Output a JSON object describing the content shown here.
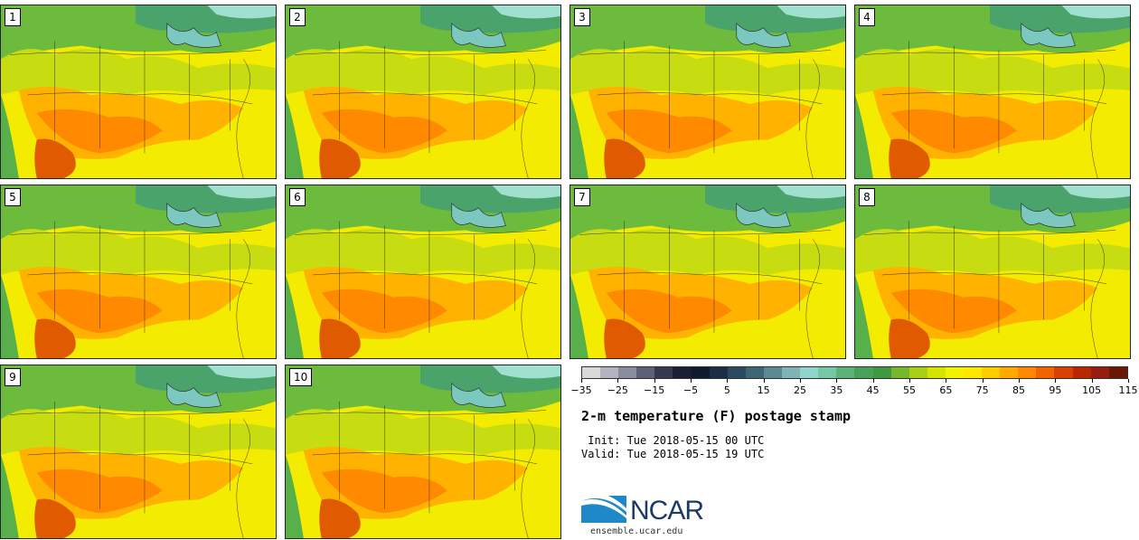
{
  "panels": [
    {
      "label": "1"
    },
    {
      "label": "2"
    },
    {
      "label": "3"
    },
    {
      "label": "4"
    },
    {
      "label": "5"
    },
    {
      "label": "6"
    },
    {
      "label": "7"
    },
    {
      "label": "8"
    },
    {
      "label": "9"
    },
    {
      "label": "10"
    }
  ],
  "colorbar": {
    "colors": [
      "#d8d8d8",
      "#b2b3bd",
      "#8a8c9e",
      "#5d6078",
      "#35384f",
      "#1a1f33",
      "#0f1a2e",
      "#1b2e45",
      "#2b4a61",
      "#3d6675",
      "#5b8a94",
      "#7fb3b5",
      "#8ed6cc",
      "#76c7a3",
      "#5bb37a",
      "#48a15a",
      "#3f9940",
      "#75b82e",
      "#a9cf14",
      "#d4e300",
      "#f2f200",
      "#ffe800",
      "#ffcc00",
      "#ffaa00",
      "#ff8800",
      "#f06400",
      "#d64000",
      "#b82800",
      "#961e10",
      "#6b1708"
    ],
    "tick_labels": [
      "−35",
      "−25",
      "−15",
      "−5",
      "5",
      "15",
      "25",
      "35",
      "45",
      "55",
      "65",
      "75",
      "85",
      "95",
      "105",
      "115"
    ]
  },
  "title": "2-m temperature (F) postage stamp",
  "init": " Init: Tue 2018-05-15 00 UTC",
  "valid": "Valid: Tue 2018-05-15 19 UTC",
  "logo": {
    "text": "NCAR",
    "url": "ensemble.ucar.edu",
    "color": "#1b3a66",
    "accent": "#1e88c8"
  }
}
